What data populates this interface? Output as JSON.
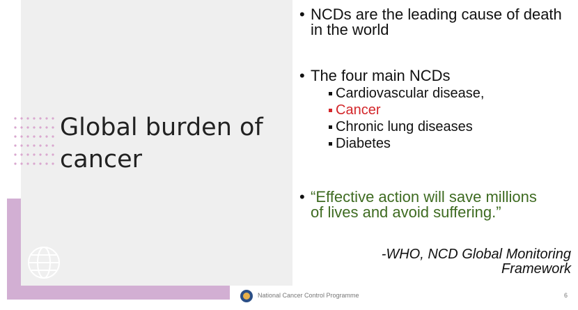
{
  "slide": {
    "title": "Global burden of cancer",
    "bullets": [
      {
        "text": "NCDs are the leading cause of death in the world"
      },
      {
        "text": "The four main NCDs",
        "subitems": [
          "Cardiovascular disease,",
          "Cancer",
          "Chronic lung diseases",
          "Diabetes"
        ]
      }
    ],
    "quote": "“Effective action will save millions of lives and avoid suffering.”",
    "attribution": "-WHO, NCD Global Monitoring Framework",
    "footer": "National Cancer Control Programme",
    "page_number": "6"
  }
}
